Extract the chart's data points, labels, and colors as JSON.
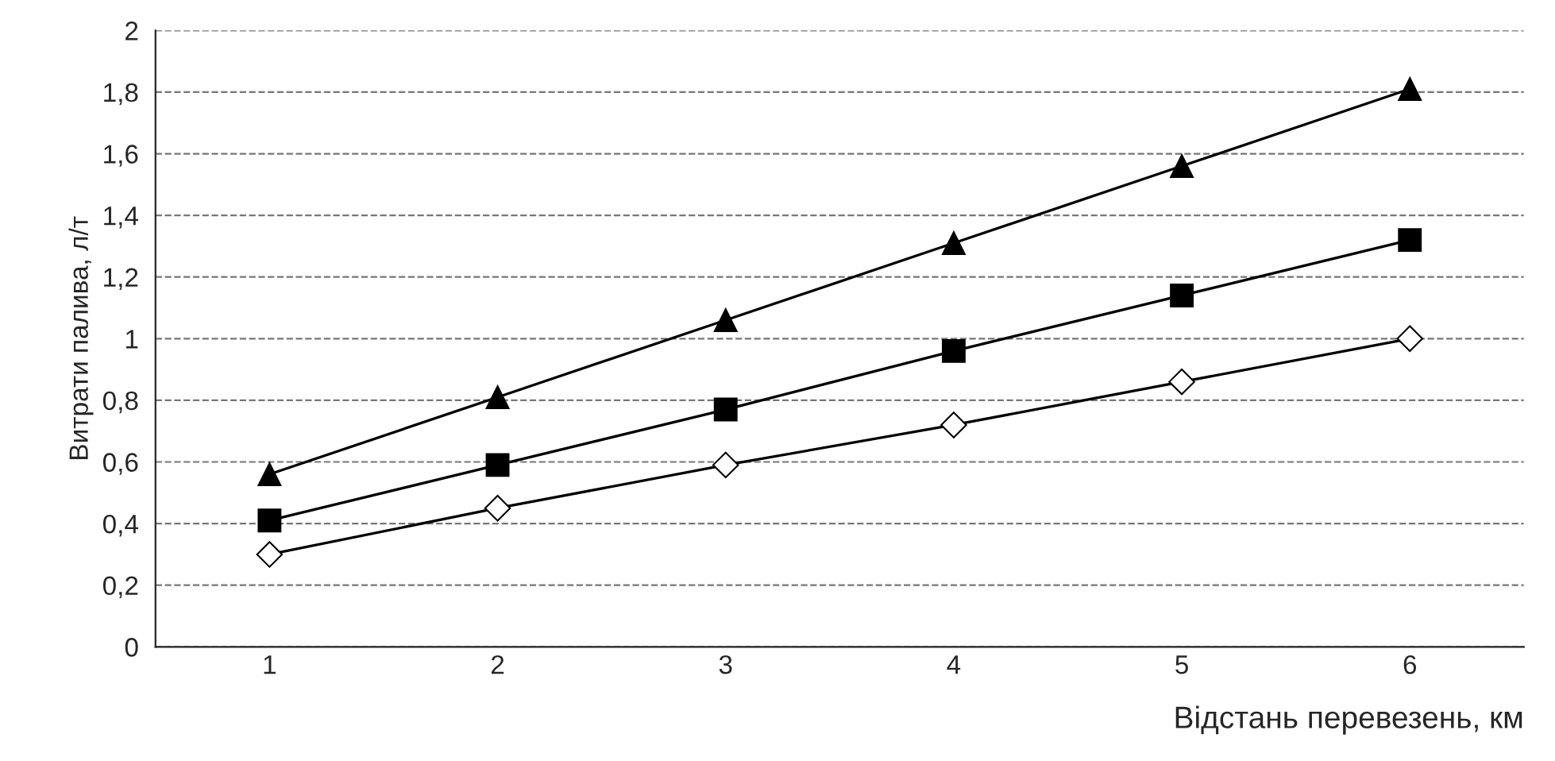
{
  "chart_data": {
    "type": "line",
    "xlabel": "Відстань перевезень, км",
    "ylabel": "Витрати палива, л/т",
    "categories": [
      "1",
      "2",
      "3",
      "4",
      "5",
      "6"
    ],
    "series": [
      {
        "color": "#000000",
        "marker": "diamond",
        "values": [
          0.3,
          0.45,
          0.59,
          0.72,
          0.86,
          1.0
        ]
      },
      {
        "color": "#000000",
        "marker": "square",
        "values": [
          0.41,
          0.59,
          0.77,
          0.96,
          1.14,
          1.32
        ]
      },
      {
        "color": "#000000",
        "marker": "triangle",
        "values": [
          0.56,
          0.81,
          1.06,
          1.31,
          1.56,
          1.81
        ]
      }
    ],
    "ylim": [
      0,
      2
    ],
    "yticks": [
      0,
      {
        "value": 0.2,
        "label": "0,2"
      },
      {
        "value": 0.4,
        "label": "0,4"
      },
      {
        "value": 0.6,
        "label": "0,6"
      },
      {
        "value": 0.8,
        "label": "0,8"
      },
      1,
      {
        "value": 1.2,
        "label": "1,2"
      },
      {
        "value": 1.4,
        "label": "1,4"
      },
      {
        "value": 1.6,
        "label": "1,6"
      },
      {
        "value": 1.8,
        "label": "1,8"
      },
      2
    ],
    "grid": "y",
    "line_style": "solid"
  }
}
